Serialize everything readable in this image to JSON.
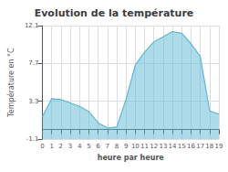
{
  "chart_data": {
    "type": "area",
    "title": "Evolution de la température",
    "xlabel": "heure par heure",
    "ylabel": "Température en °C",
    "x": [
      0,
      1,
      2,
      3,
      4,
      5,
      6,
      7,
      8,
      9,
      10,
      11,
      12,
      13,
      14,
      15,
      16,
      17,
      18,
      19
    ],
    "values": [
      1.5,
      3.6,
      3.5,
      3.1,
      2.7,
      2.1,
      0.8,
      0.2,
      0.3,
      3.5,
      7.5,
      9.0,
      10.2,
      10.8,
      11.4,
      11.2,
      10.0,
      8.5,
      2.2,
      1.8
    ],
    "xlim": [
      0,
      19
    ],
    "xticks": [
      0,
      1,
      2,
      3,
      4,
      5,
      6,
      7,
      8,
      9,
      10,
      11,
      12,
      13,
      14,
      15,
      16,
      17,
      18,
      19
    ],
    "ylim": [
      -1.1,
      12.1
    ],
    "yticks": [
      -1.1,
      3.3,
      7.7,
      12.1
    ],
    "color": "#5bb8d4",
    "grid": true
  }
}
